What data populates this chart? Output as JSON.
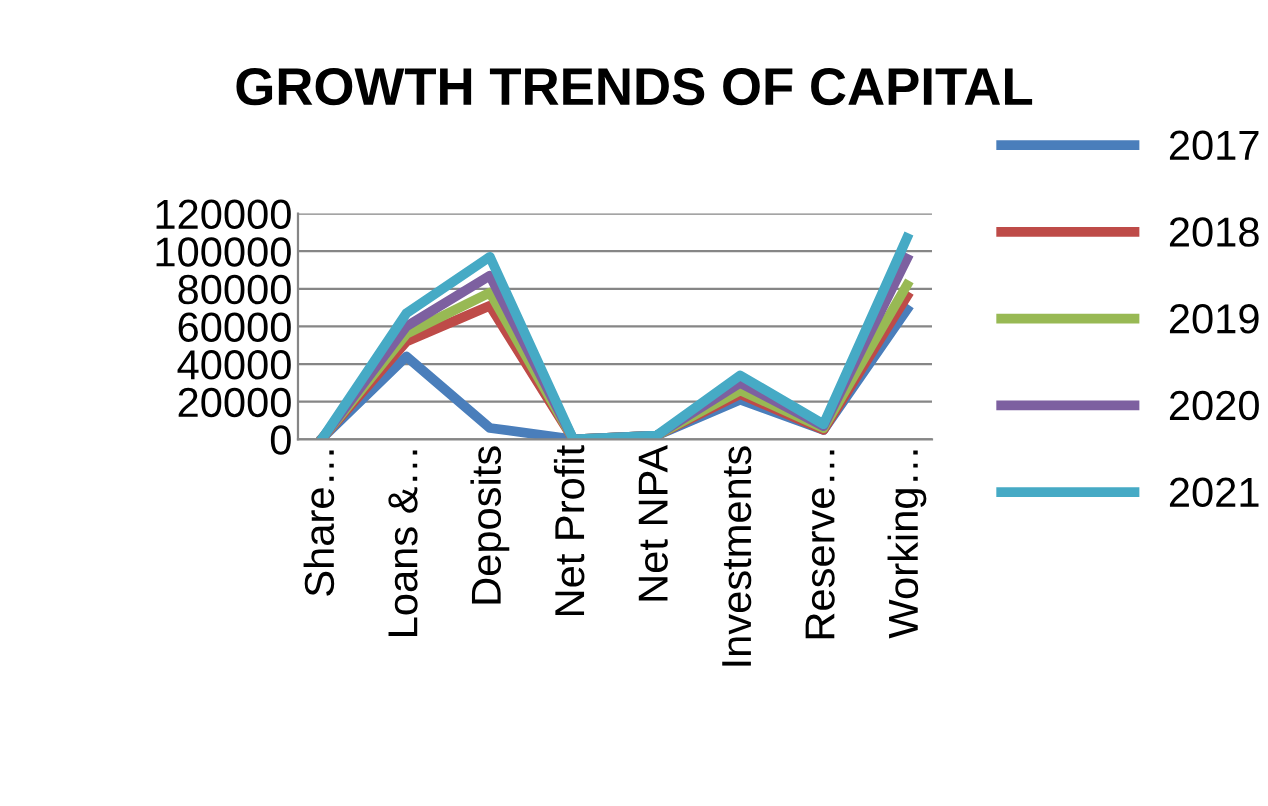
{
  "chart_data": {
    "type": "line",
    "title": "GROWTH TRENDS OF CAPITAL",
    "categories": [
      "Share…",
      "Loans &…",
      "Deposits",
      "Net Profit",
      "Net NPA",
      "Investments",
      "Reserve…",
      "Working…"
    ],
    "series": [
      {
        "name": "2017",
        "color": "#4a7ebb",
        "values": [
          1000,
          44000,
          6000,
          0,
          2000,
          21000,
          5000,
          69000
        ]
      },
      {
        "name": "2018",
        "color": "#be4b48",
        "values": [
          1000,
          52000,
          71000,
          0,
          2000,
          24000,
          5000,
          76000
        ]
      },
      {
        "name": "2019",
        "color": "#98b954",
        "values": [
          1000,
          56000,
          78000,
          0,
          2000,
          26000,
          6000,
          82000
        ]
      },
      {
        "name": "2020",
        "color": "#7d60a0",
        "values": [
          1000,
          60000,
          87000,
          0,
          2000,
          30000,
          7000,
          96000
        ]
      },
      {
        "name": "2021",
        "color": "#46aac5",
        "values": [
          1000,
          67000,
          97000,
          0,
          2000,
          34000,
          8000,
          107000
        ]
      }
    ],
    "ylim": [
      0,
      120000
    ],
    "yticks": [
      0,
      20000,
      40000,
      60000,
      80000,
      100000,
      120000
    ],
    "grid": "y",
    "legend": "right",
    "marker": "none",
    "line_style": "solid"
  }
}
